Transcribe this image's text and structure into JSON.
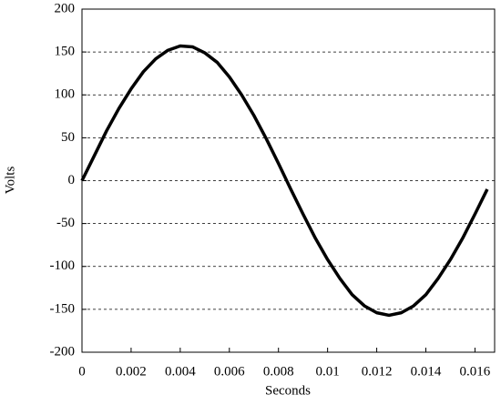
{
  "chart_data": {
    "type": "line",
    "x_label": "Seconds",
    "y_label": "Volts",
    "x": [
      0,
      0.0005,
      0.001,
      0.0015,
      0.002,
      0.0025,
      0.003,
      0.0035,
      0.004,
      0.0045,
      0.005,
      0.0055,
      0.006,
      0.0065,
      0.007,
      0.0075,
      0.008,
      0.0085,
      0.009,
      0.0095,
      0.01,
      0.0105,
      0.011,
      0.0115,
      0.012,
      0.0125,
      0.013,
      0.0135,
      0.014,
      0.0145,
      0.015,
      0.0155,
      0.016,
      0.0165
    ],
    "series": [
      {
        "color": "#000000",
        "values": [
          0,
          29,
          58,
          84,
          107,
          127,
          142,
          152,
          157,
          156,
          149,
          138,
          121,
          100,
          76,
          49,
          20,
          -10,
          -39,
          -67,
          -92,
          -114,
          -133,
          -146,
          -154,
          -157,
          -154,
          -146,
          -133,
          -114,
          -92,
          -67,
          -39,
          -10
        ]
      }
    ],
    "xlim": [
      0,
      0.0168
    ],
    "ylim": [
      -200,
      200
    ],
    "xticks": [
      0,
      0.002,
      0.004,
      0.006,
      0.008,
      0.01,
      0.012,
      0.014,
      0.016
    ],
    "yticks": [
      -200,
      -150,
      -100,
      -50,
      0,
      50,
      100,
      150,
      200
    ],
    "grid": true
  }
}
